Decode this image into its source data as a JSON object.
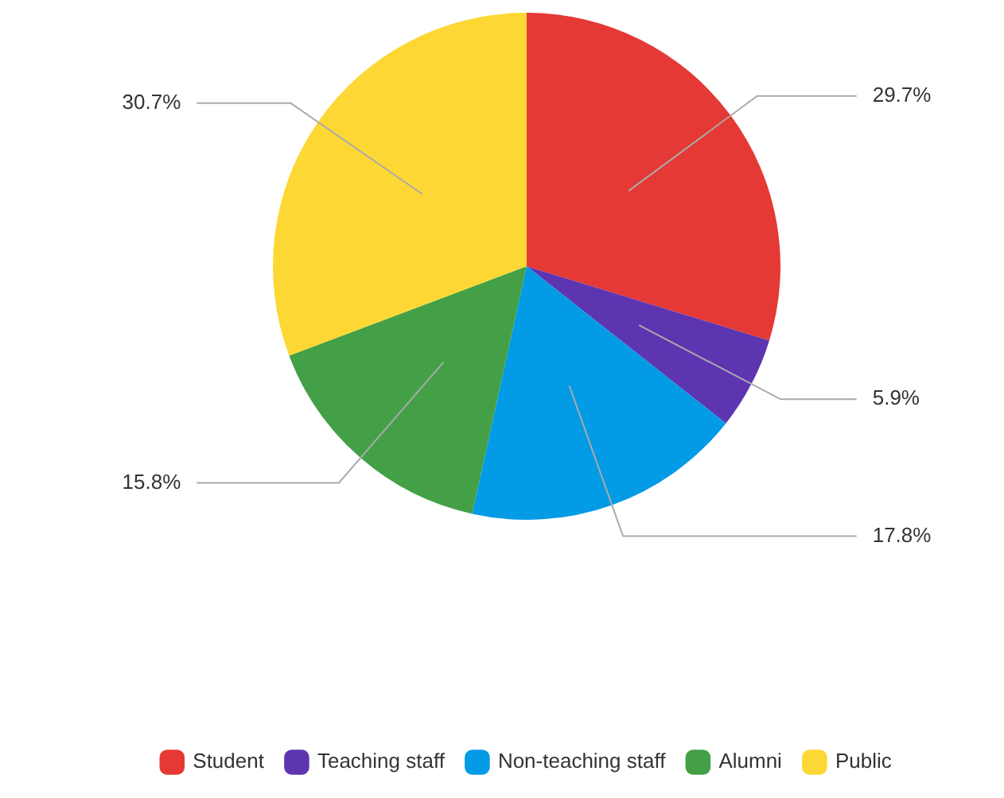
{
  "chart_data": {
    "type": "pie",
    "categories": [
      "Student",
      "Teaching staff",
      "Non-teaching staff",
      "Alumni",
      "Public"
    ],
    "values": [
      29.7,
      5.9,
      17.8,
      15.8,
      30.7
    ],
    "colors": [
      "#e53935",
      "#5e35b1",
      "#039be5",
      "#43a047",
      "#fdd835"
    ],
    "value_labels": [
      "29.7%",
      "5.9%",
      "17.8%",
      "15.8%",
      "30.7%"
    ],
    "legend": "bottom"
  }
}
